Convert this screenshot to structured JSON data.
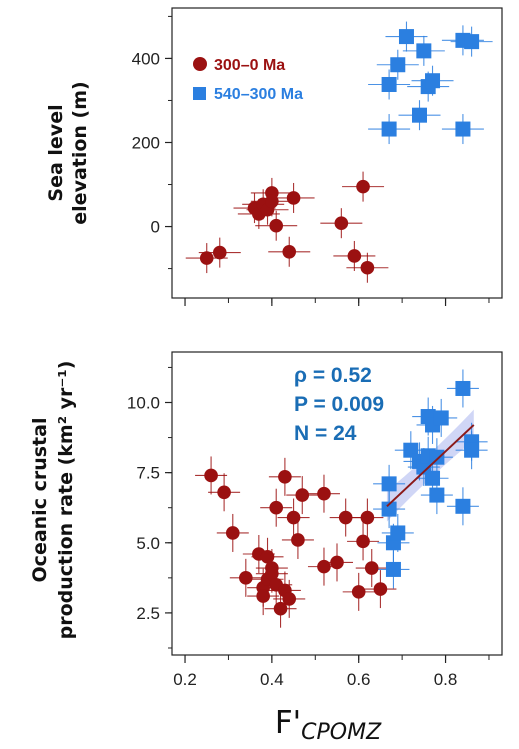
{
  "chart_data": [
    {
      "type": "scatter",
      "ylabel_lines": [
        "Sea level",
        "elevation (m)"
      ],
      "yticks": [
        0,
        200,
        400
      ],
      "ylim": [
        -170,
        520
      ],
      "xlim": [
        0.17,
        0.93
      ],
      "grid": false,
      "legend_position": "top-left",
      "series": [
        {
          "name": "300–0 Ma",
          "color": "#9b1111",
          "marker": "circle",
          "points": [
            {
              "x": 0.25,
              "y": -75
            },
            {
              "x": 0.28,
              "y": -62
            },
            {
              "x": 0.36,
              "y": 44
            },
            {
              "x": 0.37,
              "y": 30
            },
            {
              "x": 0.38,
              "y": 53
            },
            {
              "x": 0.39,
              "y": 40
            },
            {
              "x": 0.4,
              "y": 80
            },
            {
              "x": 0.4,
              "y": 60
            },
            {
              "x": 0.41,
              "y": 2
            },
            {
              "x": 0.44,
              "y": -60
            },
            {
              "x": 0.45,
              "y": 68
            },
            {
              "x": 0.56,
              "y": 8
            },
            {
              "x": 0.59,
              "y": -70
            },
            {
              "x": 0.61,
              "y": 95
            },
            {
              "x": 0.62,
              "y": -98
            }
          ]
        },
        {
          "name": "540–300 Ma",
          "color": "#2b7fe0",
          "marker": "square",
          "points": [
            {
              "x": 0.67,
              "y": 232
            },
            {
              "x": 0.67,
              "y": 338
            },
            {
              "x": 0.69,
              "y": 385
            },
            {
              "x": 0.71,
              "y": 452
            },
            {
              "x": 0.74,
              "y": 265
            },
            {
              "x": 0.75,
              "y": 418
            },
            {
              "x": 0.76,
              "y": 333
            },
            {
              "x": 0.77,
              "y": 347
            },
            {
              "x": 0.84,
              "y": 443
            },
            {
              "x": 0.84,
              "y": 232
            },
            {
              "x": 0.86,
              "y": 440
            }
          ]
        }
      ]
    },
    {
      "type": "scatter",
      "ylabel_lines": [
        "Oceanic crustal",
        "production rate (km² yr⁻¹)"
      ],
      "xlabel_main": "F'",
      "xlabel_sub": "CPOMZ",
      "xticks": [
        0.2,
        0.4,
        0.6,
        0.8
      ],
      "xtick_labels": [
        "0.2",
        "0.4",
        "0.6",
        "0.8"
      ],
      "yticks": [
        2.5,
        5.0,
        7.5,
        10.0
      ],
      "ytick_labels": [
        "2.5",
        "5.0",
        "7.5",
        "10.0"
      ],
      "ylim": [
        1.0,
        11.8
      ],
      "xlim": [
        0.17,
        0.93
      ],
      "grid": false,
      "annotations": [
        "ρ = 0.52",
        "P = 0.009",
        "N = 24"
      ],
      "fit": {
        "x": [
          0.665,
          0.865
        ],
        "y": [
          6.3,
          9.2
        ],
        "color": "#8b1a1a",
        "band_color": "#aab4ee"
      },
      "series": [
        {
          "name": "300–0 Ma",
          "color": "#9b1111",
          "marker": "circle",
          "points": [
            {
              "x": 0.26,
              "y": 7.4
            },
            {
              "x": 0.29,
              "y": 6.8
            },
            {
              "x": 0.31,
              "y": 5.35
            },
            {
              "x": 0.34,
              "y": 3.75
            },
            {
              "x": 0.37,
              "y": 4.6
            },
            {
              "x": 0.38,
              "y": 3.4
            },
            {
              "x": 0.38,
              "y": 3.1
            },
            {
              "x": 0.39,
              "y": 4.5
            },
            {
              "x": 0.39,
              "y": 3.7
            },
            {
              "x": 0.4,
              "y": 4.1
            },
            {
              "x": 0.4,
              "y": 3.9
            },
            {
              "x": 0.41,
              "y": 6.25
            },
            {
              "x": 0.41,
              "y": 3.5
            },
            {
              "x": 0.42,
              "y": 2.65
            },
            {
              "x": 0.43,
              "y": 7.35
            },
            {
              "x": 0.43,
              "y": 3.3
            },
            {
              "x": 0.44,
              "y": 3.0
            },
            {
              "x": 0.45,
              "y": 5.9
            },
            {
              "x": 0.46,
              "y": 5.1
            },
            {
              "x": 0.47,
              "y": 6.7
            },
            {
              "x": 0.52,
              "y": 6.75
            },
            {
              "x": 0.52,
              "y": 4.15
            },
            {
              "x": 0.55,
              "y": 4.3
            },
            {
              "x": 0.57,
              "y": 5.9
            },
            {
              "x": 0.6,
              "y": 3.25
            },
            {
              "x": 0.61,
              "y": 5.05
            },
            {
              "x": 0.62,
              "y": 5.9
            },
            {
              "x": 0.63,
              "y": 4.1
            },
            {
              "x": 0.65,
              "y": 3.35
            }
          ]
        },
        {
          "name": "540–300 Ma",
          "color": "#2b7fe0",
          "marker": "square",
          "points": [
            {
              "x": 0.67,
              "y": 6.2
            },
            {
              "x": 0.67,
              "y": 7.1
            },
            {
              "x": 0.68,
              "y": 4.05
            },
            {
              "x": 0.68,
              "y": 5.0
            },
            {
              "x": 0.69,
              "y": 5.35
            },
            {
              "x": 0.72,
              "y": 8.3
            },
            {
              "x": 0.74,
              "y": 7.9
            },
            {
              "x": 0.75,
              "y": 7.7
            },
            {
              "x": 0.76,
              "y": 8.1
            },
            {
              "x": 0.76,
              "y": 9.5
            },
            {
              "x": 0.77,
              "y": 9.2
            },
            {
              "x": 0.77,
              "y": 7.3
            },
            {
              "x": 0.78,
              "y": 8.05
            },
            {
              "x": 0.78,
              "y": 6.7
            },
            {
              "x": 0.79,
              "y": 9.45
            },
            {
              "x": 0.84,
              "y": 10.5
            },
            {
              "x": 0.84,
              "y": 6.3
            },
            {
              "x": 0.86,
              "y": 8.6
            },
            {
              "x": 0.86,
              "y": 8.3
            }
          ]
        }
      ]
    }
  ]
}
